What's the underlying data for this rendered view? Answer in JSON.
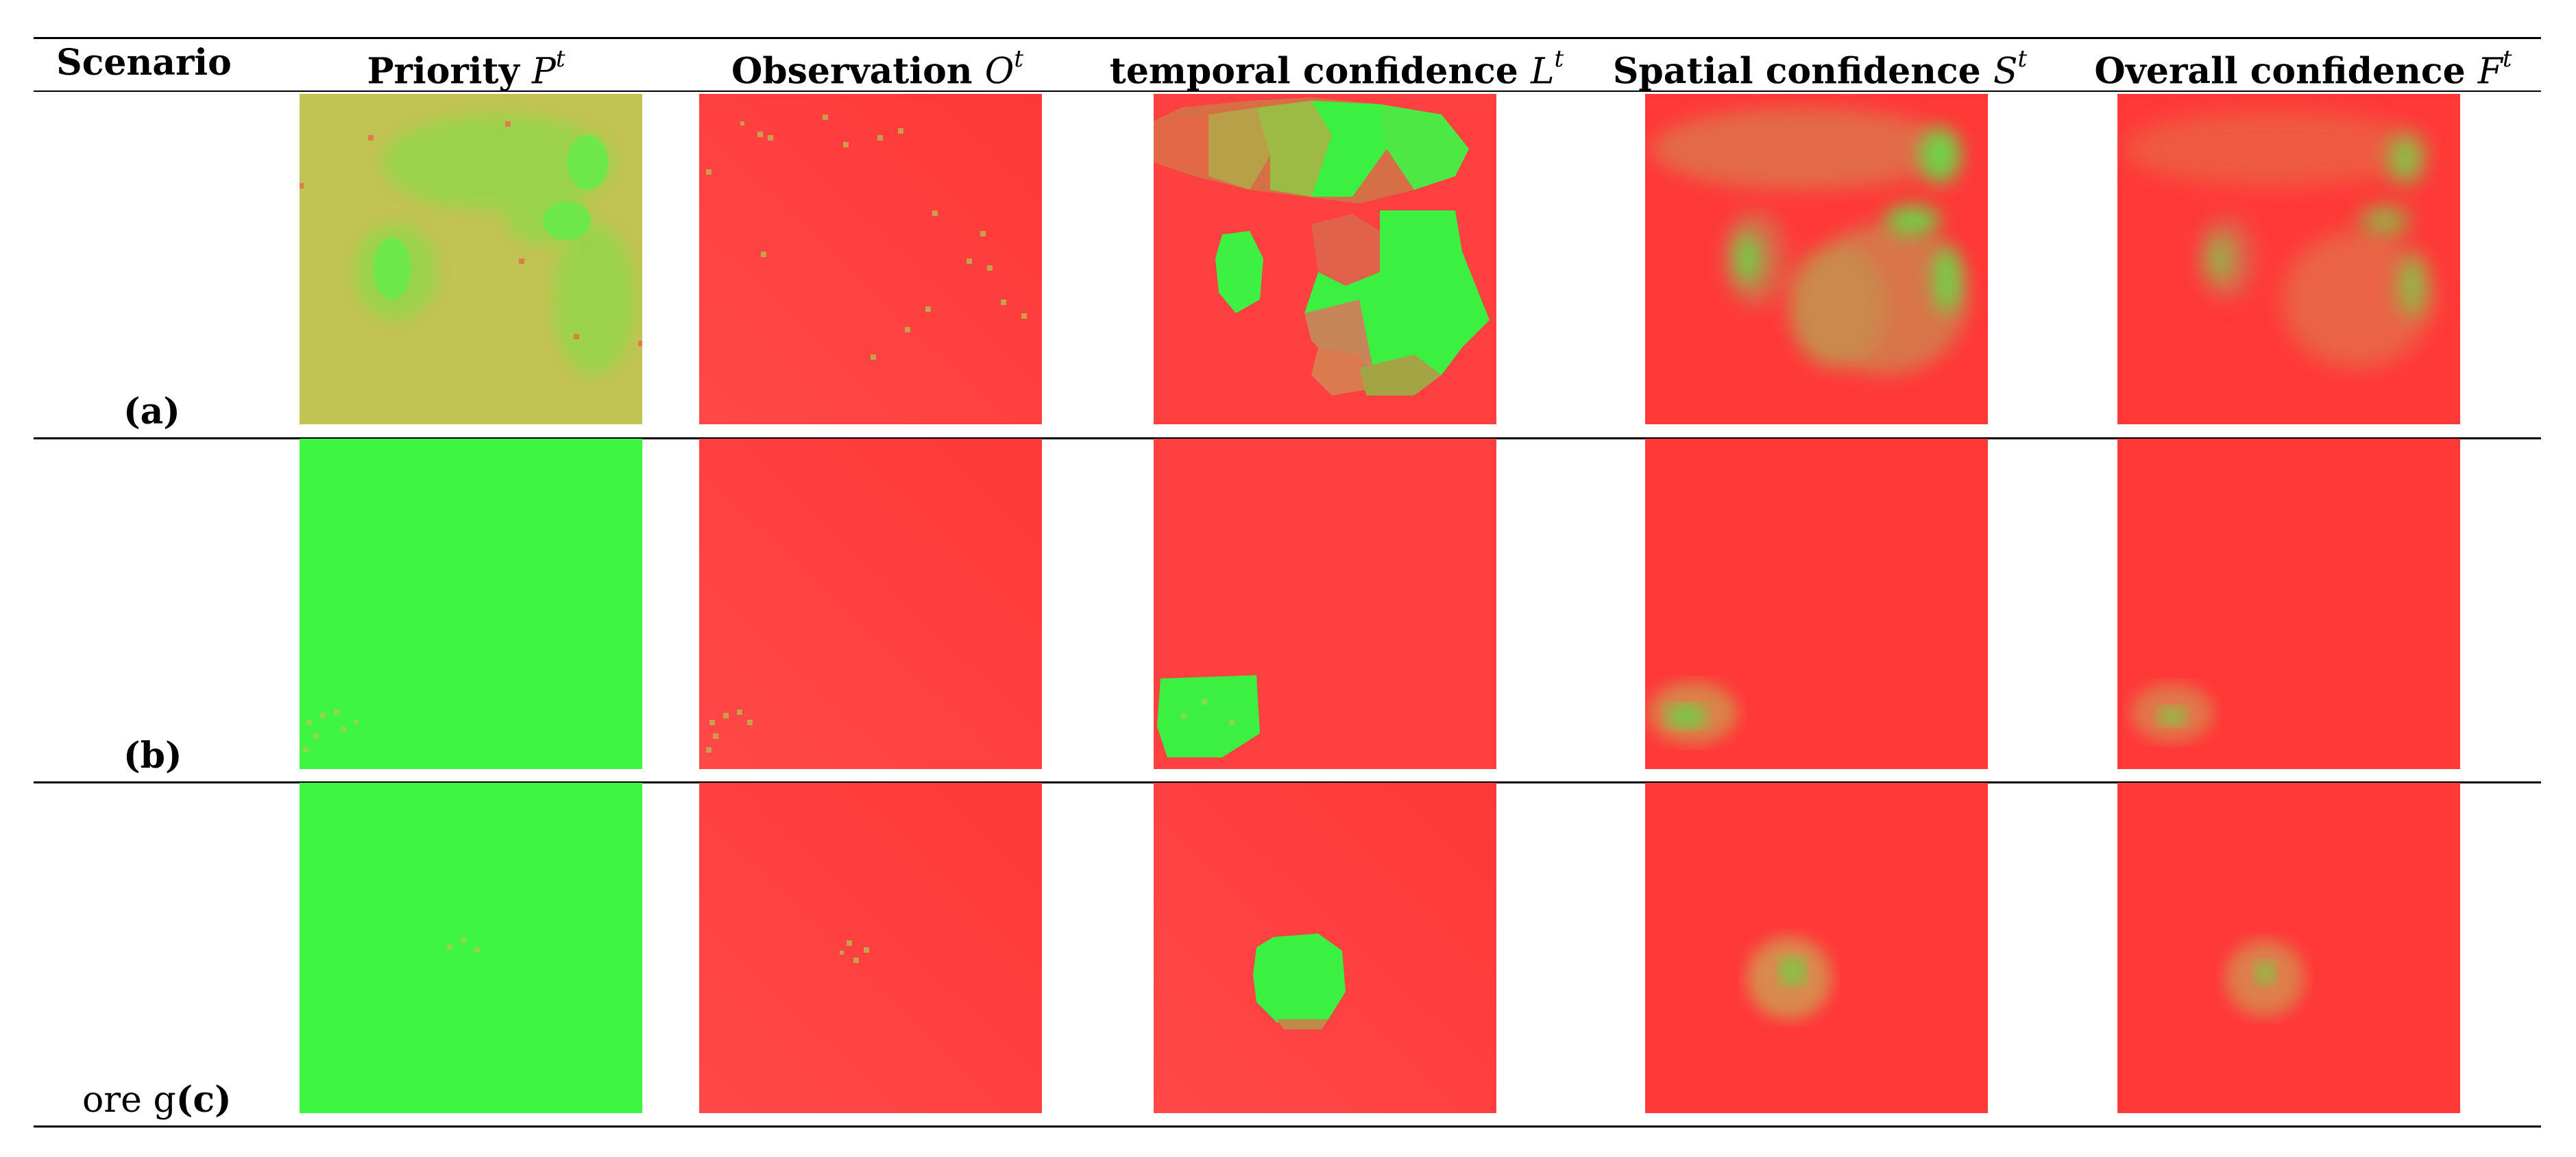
{
  "header": {
    "scenario": "Scenario",
    "columns": [
      {
        "label": "Priority",
        "symbol": "P",
        "superscript": "t"
      },
      {
        "label": "Observation",
        "symbol": "O",
        "superscript": "t"
      },
      {
        "label": "temporal confidence",
        "symbol": "L",
        "superscript": "t"
      },
      {
        "label": "Spatial confidence",
        "symbol": "S",
        "superscript": "t"
      },
      {
        "label": "Overall confidence",
        "symbol": "F",
        "superscript": "t"
      }
    ]
  },
  "rows": [
    {
      "label": "(a)"
    },
    {
      "label": "(b)"
    },
    {
      "label_prefix": "ore g",
      "label": "(c)"
    }
  ],
  "colors": {
    "green": "#3df542",
    "red": "#ff3b3b",
    "olive": "#c1c352",
    "mix": "#d98a46"
  }
}
